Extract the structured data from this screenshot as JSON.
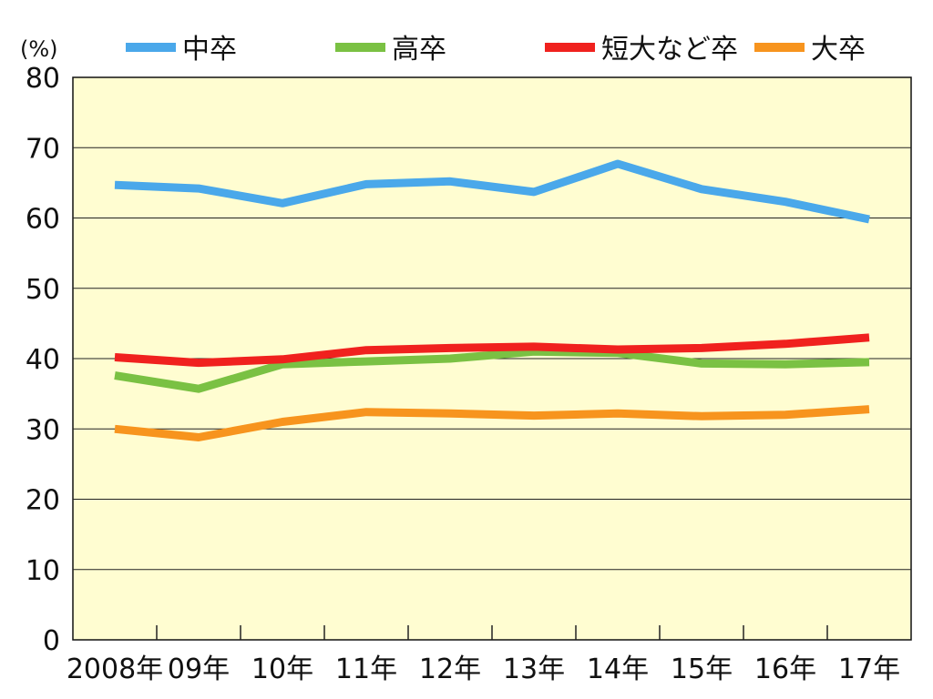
{
  "chart_data": {
    "type": "line",
    "title": "",
    "unit_label": "(%)",
    "xlabel": "",
    "ylabel": "(%)",
    "ylim": [
      0,
      80
    ],
    "yticks": [
      0,
      10,
      20,
      30,
      40,
      50,
      60,
      70,
      80
    ],
    "grid": true,
    "legend_position": "top",
    "categories": [
      "2008年",
      "09年",
      "10年",
      "11年",
      "12年",
      "13年",
      "14年",
      "15年",
      "16年",
      "17年"
    ],
    "series": [
      {
        "name": "中卒",
        "color": "#4aa8ea",
        "values": [
          64.7,
          64.2,
          62.1,
          64.8,
          65.2,
          63.7,
          67.7,
          64.1,
          62.3,
          59.8
        ]
      },
      {
        "name": "高卒",
        "color": "#7ac143",
        "values": [
          37.6,
          35.7,
          39.2,
          39.6,
          40.0,
          41.0,
          40.8,
          39.3,
          39.2,
          39.5
        ]
      },
      {
        "name": "短大など卒",
        "color": "#f0211e",
        "values": [
          40.2,
          39.4,
          39.9,
          41.2,
          41.5,
          41.7,
          41.3,
          41.5,
          42.1,
          43.0
        ]
      },
      {
        "name": "大卒",
        "color": "#f7941e",
        "values": [
          30.0,
          28.8,
          31.0,
          32.4,
          32.2,
          31.9,
          32.2,
          31.8,
          32.0,
          32.8
        ]
      }
    ]
  }
}
